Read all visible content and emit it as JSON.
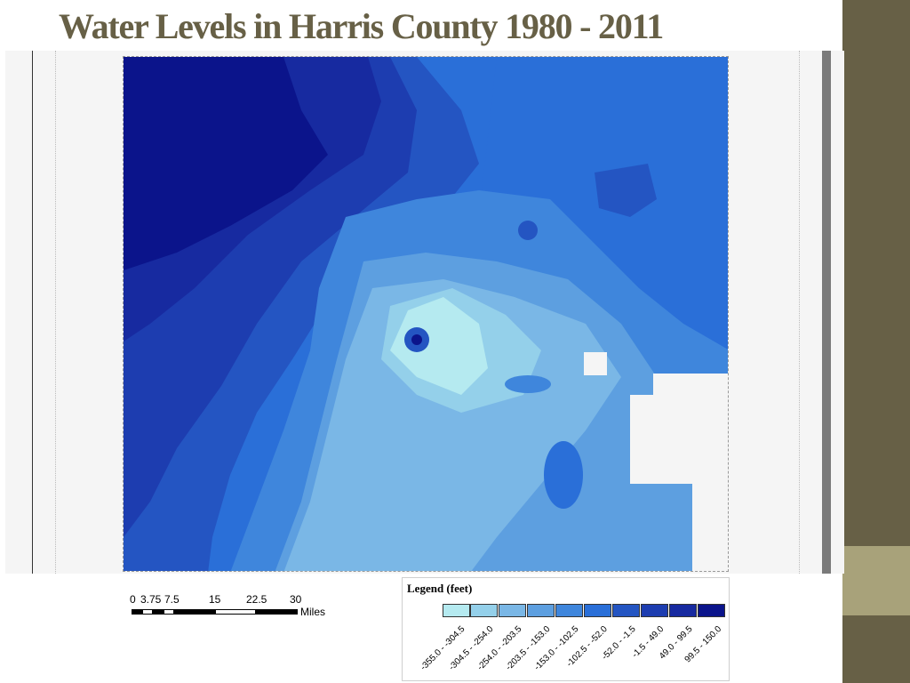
{
  "slide": {
    "title": "Water Levels in Harris County 1980 - 2011",
    "accent_color": "#676046",
    "accent_light": "#a8a27a"
  },
  "map": {
    "name": "Harris County water level contour map",
    "palette": [
      "#b5eaf0",
      "#94d0ea",
      "#7ab7e6",
      "#5d9fe0",
      "#3f86dc",
      "#2a6fd8",
      "#2455c2",
      "#1d3db0",
      "#172aa0",
      "#0b148b"
    ]
  },
  "scalebar": {
    "ticks": [
      "0",
      "3.75",
      "7.5",
      "15",
      "22.5",
      "30"
    ],
    "units": "Miles"
  },
  "legend": {
    "title": "Legend (feet)",
    "items": [
      {
        "label": "-355.0 - -304.5",
        "color": "#b5eaf0"
      },
      {
        "label": "-304.5 - -254.0",
        "color": "#94d0ea"
      },
      {
        "label": "-254.0 - -203.5",
        "color": "#7ab7e6"
      },
      {
        "label": "-203.5 - -153.0",
        "color": "#5d9fe0"
      },
      {
        "label": "-153.0 - -102.5",
        "color": "#3f86dc"
      },
      {
        "label": "-102.5 - -52.0",
        "color": "#2a6fd8"
      },
      {
        "label": "-52.0 - -1.5",
        "color": "#2455c2"
      },
      {
        "label": "-1.5 - 49.0",
        "color": "#1d3db0"
      },
      {
        "label": "49.0 - 99.5",
        "color": "#172aa0"
      },
      {
        "label": "99.5 - 150.0",
        "color": "#0b148b"
      }
    ]
  }
}
